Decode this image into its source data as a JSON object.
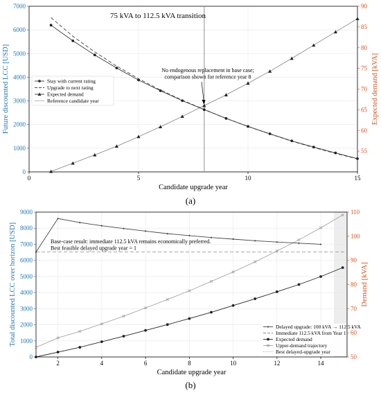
{
  "panel_labels": {
    "a": "(a)",
    "b": "(b)"
  },
  "colors": {
    "left_axis": "#1f77b4",
    "right_axis": "#d9541e",
    "series_dark": "#333333",
    "series_gray": "#808080",
    "grid": "#e6e6e6",
    "shade": "#ededed"
  },
  "chart_data": [
    {
      "id": "a",
      "type": "line",
      "title": "75 kVA to 112.5 kVA transition",
      "xlabel": "Candidate upgrade year",
      "ylabel_left": "Future discounted LCC [USD]",
      "ylabel_right": "Expected demand [kVA]",
      "xlim": [
        0,
        15
      ],
      "ylim_left": [
        0,
        7000
      ],
      "ylim_right": [
        50,
        90
      ],
      "x_ticks": [
        0,
        5,
        10,
        15
      ],
      "y_left_ticks": [
        0,
        1000,
        2000,
        3000,
        4000,
        5000,
        6000,
        7000
      ],
      "y_right_ticks": [
        55,
        60,
        65,
        70,
        75,
        80,
        85,
        90
      ],
      "grid": true,
      "legend_position": "middle-left",
      "annotation": "No endogenous replacement in base case; comparison shown for reference year 8",
      "annotation_lines": [
        "No endogenous replacement in base case;",
        "comparison shown for reference year 8"
      ],
      "reference_x": 8,
      "series": [
        {
          "name": "Stay with current rating",
          "axis": "left",
          "x": [
            1,
            2,
            3,
            4,
            5,
            6,
            7,
            8,
            9,
            10,
            11,
            12,
            13,
            14,
            15
          ],
          "values": [
            6200,
            5540,
            4940,
            4390,
            3880,
            3430,
            3010,
            2630,
            2260,
            1920,
            1610,
            1310,
            1050,
            800,
            560
          ]
        },
        {
          "name": "Upgrade to next rating",
          "axis": "left",
          "x": [
            1,
            2,
            3,
            4,
            5,
            6,
            7,
            8,
            9,
            10,
            11,
            12,
            13,
            14,
            15
          ],
          "values": [
            6520,
            5730,
            5070,
            4470,
            3940,
            3460,
            3030,
            2640,
            2260,
            1920,
            1600,
            1300,
            1030,
            780,
            550
          ]
        },
        {
          "name": "Expected demand",
          "axis": "right",
          "x": [
            1,
            2,
            3,
            4,
            5,
            6,
            7,
            8,
            9,
            10,
            11,
            12,
            13,
            14,
            15
          ],
          "values": [
            50.1,
            52.1,
            54.1,
            56.2,
            58.5,
            60.9,
            63.4,
            66.0,
            68.6,
            71.4,
            74.3,
            77.4,
            80.6,
            83.8,
            87.0
          ]
        },
        {
          "name": "Reference candidate year",
          "axis": "left",
          "x": [
            8,
            8
          ],
          "values": [
            0,
            7000
          ]
        }
      ]
    },
    {
      "id": "b",
      "type": "line",
      "title": "",
      "xlabel": "Candidate upgrade year",
      "ylabel_left": "Total discounted LCC over horizon [USD]",
      "ylabel_right": "Demand [kVA]",
      "xlim": [
        1,
        15.2
      ],
      "ylim_left": [
        0,
        9000
      ],
      "ylim_right": [
        50,
        110
      ],
      "x_ticks": [
        2,
        4,
        6,
        8,
        10,
        12,
        14
      ],
      "y_left_ticks": [
        0,
        1000,
        2000,
        3000,
        4000,
        5000,
        6000,
        7000,
        8000,
        9000
      ],
      "y_right_ticks": [
        50,
        60,
        70,
        80,
        90,
        100,
        110
      ],
      "grid": true,
      "legend_position": "bottom-right",
      "annotation": "Base-case result: immediate 112.5 kVA remains economically preferred. Best feasible delayed upgrade year = 1",
      "annotation_lines": [
        "Base-case result: immediate 112.5 kVA remains economically preferred.",
        "Best feasible delayed upgrade year = 1"
      ],
      "shaded_x": [
        14.6,
        15.2
      ],
      "series": [
        {
          "name": "Delayed upgrade: 100 kVA → 112.5 kVA",
          "axis": "left",
          "x": [
            1,
            2,
            3,
            4,
            5,
            6,
            7,
            8,
            9,
            10,
            11,
            12,
            13,
            14
          ],
          "values": [
            6520,
            8600,
            8350,
            8150,
            7980,
            7820,
            7660,
            7540,
            7420,
            7320,
            7220,
            7140,
            7070,
            7000
          ]
        },
        {
          "name": "Immediate 112.5 kVA from Year 1",
          "axis": "left",
          "x": [
            1,
            15.2
          ],
          "values": [
            6520,
            6520
          ]
        },
        {
          "name": "Expected demand",
          "axis": "right",
          "x": [
            1,
            2,
            3,
            4,
            5,
            6,
            7,
            8,
            9,
            10,
            11,
            12,
            13,
            14,
            15
          ],
          "values": [
            50,
            52,
            54,
            56.3,
            58.6,
            61,
            63.4,
            65.9,
            68.5,
            71.3,
            74.1,
            77,
            80,
            83.3,
            87
          ]
        },
        {
          "name": "Upper-demand trajectory",
          "axis": "right",
          "x": [
            1,
            2,
            3,
            4,
            5,
            6,
            7,
            8,
            9,
            10,
            11,
            12,
            13,
            14,
            15
          ],
          "values": [
            54,
            57.9,
            60.6,
            63.7,
            66.9,
            70.3,
            73.8,
            77.4,
            81.3,
            85.2,
            89.4,
            93.9,
            98.5,
            103.5,
            108.8
          ]
        },
        {
          "name": "Best delayed-upgrade year",
          "axis": "left",
          "x": [
            1,
            1
          ],
          "values": [
            0,
            9000
          ]
        }
      ]
    }
  ]
}
